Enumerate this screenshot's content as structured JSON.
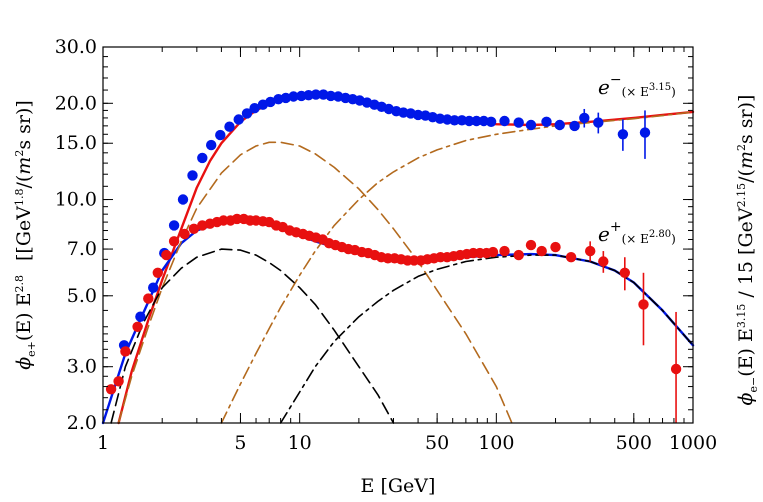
{
  "chart_data": {
    "type": "scatter",
    "xscale": "log",
    "yscale": "log",
    "xlim": [
      1,
      1000
    ],
    "ylim": [
      2,
      30
    ],
    "x_ticks": [
      1,
      5,
      10,
      50,
      100,
      500,
      1000
    ],
    "x_tick_labels": [
      "1",
      "5",
      "10",
      "50",
      "100",
      "500",
      "1000"
    ],
    "y_ticks": [
      2,
      3,
      5,
      7,
      10,
      15,
      20,
      30
    ],
    "y_tick_labels": [
      "2.0",
      "3.0",
      "5.0",
      "7.0",
      "10.0",
      "15.0",
      "20.0",
      "30.0"
    ],
    "xlabel": "E  [GeV]",
    "ylabel_left_a": "[GeV",
    "ylabel_left_sup": "1.8",
    "ylabel_left_b": "/(",
    "ylabel_left_m": "m",
    "ylabel_left_m2": "2",
    "ylabel_left_c": "s sr)]",
    "ylabel_left_phi": "ϕ",
    "ylabel_left_sub": "e+",
    "ylabel_left_d": "(E) E",
    "ylabel_left_sup2": "2.8",
    "ylabel_right_phi": "ϕ",
    "ylabel_right_sub": "e−",
    "ylabel_right_a": "(E) E",
    "ylabel_right_sup": "3.15",
    "ylabel_right_b": " / 15   [GeV",
    "ylabel_right_sup2": "2.15",
    "ylabel_right_c": "/(",
    "ylabel_right_m": "m",
    "ylabel_right_m2": "2",
    "ylabel_right_d": "s sr)]",
    "series_labels": [
      {
        "name": "electrons",
        "main": "e",
        "sup": "−",
        "scale_text": "(× E",
        "scale_exp": "3.15",
        "close": ")"
      },
      {
        "name": "positrons",
        "main": "e",
        "sup": "+",
        "scale_text": "(× E",
        "scale_exp": "2.80",
        "close": ")"
      }
    ],
    "series": [
      {
        "name": "e- data (× E^3.15)",
        "color": "#0018e8",
        "marker": "circle",
        "points": [
          [
            1.28,
            3.5
          ],
          [
            1.55,
            4.3
          ],
          [
            1.8,
            5.3
          ],
          [
            2.05,
            6.8
          ],
          [
            2.3,
            8.3
          ],
          [
            2.55,
            10.0
          ],
          [
            2.85,
            11.9
          ],
          [
            3.2,
            13.5
          ],
          [
            3.55,
            14.8
          ],
          [
            3.95,
            15.9
          ],
          [
            4.4,
            16.9
          ],
          [
            4.9,
            17.8
          ],
          [
            5.4,
            18.6
          ],
          [
            5.9,
            19.3
          ],
          [
            6.5,
            19.8
          ],
          [
            7.1,
            20.2
          ],
          [
            7.8,
            20.6
          ],
          [
            8.5,
            20.8
          ],
          [
            9.3,
            21.0
          ],
          [
            10.2,
            21.1
          ],
          [
            11.1,
            21.2
          ],
          [
            12.1,
            21.3
          ],
          [
            13.2,
            21.3
          ],
          [
            14.4,
            21.1
          ],
          [
            15.7,
            21.0
          ],
          [
            17.1,
            20.8
          ],
          [
            18.6,
            20.6
          ],
          [
            20.2,
            20.4
          ],
          [
            22.0,
            20.1
          ],
          [
            24.0,
            19.8
          ],
          [
            26.1,
            19.5
          ],
          [
            28.4,
            19.2
          ],
          [
            31,
            18.9
          ],
          [
            33.7,
            18.7
          ],
          [
            36.7,
            18.6
          ],
          [
            40,
            18.4
          ],
          [
            43.6,
            18.3
          ],
          [
            47.5,
            18.1
          ],
          [
            51.7,
            17.9
          ],
          [
            56.3,
            17.8
          ],
          [
            61.3,
            17.7
          ],
          [
            66.8,
            17.7
          ],
          [
            72.8,
            17.6
          ],
          [
            79.3,
            17.6
          ],
          [
            86.4,
            17.6
          ],
          [
            94.1,
            17.5
          ],
          [
            110,
            17.6
          ],
          [
            130,
            17.4
          ],
          [
            150,
            17.1
          ],
          [
            180,
            17.5
          ],
          [
            210,
            17.1
          ],
          [
            250,
            17.0
          ],
          [
            280,
            18.0
          ],
          [
            330,
            17.4
          ],
          [
            440,
            16.0
          ],
          [
            570,
            16.2
          ]
        ],
        "errors": [
          [
            280,
            1.2
          ],
          [
            330,
            1.3
          ],
          [
            440,
            1.8
          ],
          [
            570,
            2.8
          ]
        ]
      },
      {
        "name": "e+ data (× E^2.80)",
        "color": "#e81010",
        "marker": "circle",
        "points": [
          [
            1.1,
            2.55
          ],
          [
            1.2,
            2.7
          ],
          [
            1.3,
            3.35
          ],
          [
            1.5,
            4.0
          ],
          [
            1.7,
            4.9
          ],
          [
            1.9,
            5.9
          ],
          [
            2.1,
            6.7
          ],
          [
            2.3,
            7.4
          ],
          [
            2.6,
            7.8
          ],
          [
            2.9,
            8.1
          ],
          [
            3.2,
            8.3
          ],
          [
            3.5,
            8.4
          ],
          [
            3.8,
            8.5
          ],
          [
            4.1,
            8.6
          ],
          [
            4.45,
            8.6
          ],
          [
            4.8,
            8.7
          ],
          [
            5.2,
            8.7
          ],
          [
            5.6,
            8.6
          ],
          [
            6.0,
            8.6
          ],
          [
            6.5,
            8.55
          ],
          [
            7.0,
            8.5
          ],
          [
            7.6,
            8.3
          ],
          [
            8.2,
            8.2
          ],
          [
            8.9,
            8.0
          ],
          [
            9.6,
            7.9
          ],
          [
            10.4,
            7.8
          ],
          [
            11.2,
            7.7
          ],
          [
            12.1,
            7.6
          ],
          [
            13.1,
            7.5
          ],
          [
            14.1,
            7.3
          ],
          [
            15.2,
            7.2
          ],
          [
            16.4,
            7.1
          ],
          [
            17.7,
            7.0
          ],
          [
            19.1,
            6.95
          ],
          [
            20.7,
            6.85
          ],
          [
            22.3,
            6.8
          ],
          [
            24.1,
            6.7
          ],
          [
            26,
            6.6
          ],
          [
            28.1,
            6.55
          ],
          [
            30.4,
            6.55
          ],
          [
            32.8,
            6.5
          ],
          [
            35.4,
            6.45
          ],
          [
            38.2,
            6.45
          ],
          [
            41.3,
            6.45
          ],
          [
            44.6,
            6.5
          ],
          [
            48.2,
            6.55
          ],
          [
            52,
            6.6
          ],
          [
            56.2,
            6.6
          ],
          [
            60.7,
            6.65
          ],
          [
            65.5,
            6.7
          ],
          [
            70.8,
            6.75
          ],
          [
            76.4,
            6.8
          ],
          [
            82.5,
            6.8
          ],
          [
            89.1,
            6.8
          ],
          [
            96.2,
            6.85
          ],
          [
            110,
            6.9
          ],
          [
            130,
            6.7
          ],
          [
            150,
            7.2
          ],
          [
            170,
            6.9
          ],
          [
            200,
            7.1
          ],
          [
            240,
            6.6
          ],
          [
            300,
            6.9
          ],
          [
            350,
            6.4
          ],
          [
            450,
            5.9
          ],
          [
            560,
            4.7
          ],
          [
            820,
            2.95
          ]
        ],
        "errors": [
          [
            300,
            0.5
          ],
          [
            350,
            0.5
          ],
          [
            450,
            0.7
          ],
          [
            560,
            1.2
          ],
          [
            820,
            1.5
          ]
        ]
      }
    ],
    "fits": [
      {
        "name": "e- total fit",
        "color": "#e81010",
        "style": "solid",
        "points": [
          [
            1.2,
            2.0
          ],
          [
            1.4,
            2.9
          ],
          [
            1.7,
            4.2
          ],
          [
            2.0,
            5.6
          ],
          [
            2.5,
            8.1
          ],
          [
            3,
            10.9
          ],
          [
            3.5,
            13.2
          ],
          [
            4,
            15.0
          ],
          [
            5,
            17.5
          ],
          [
            6,
            19.0
          ],
          [
            7,
            19.9
          ],
          [
            8,
            20.5
          ],
          [
            10,
            21.0
          ],
          [
            12,
            21.1
          ],
          [
            15,
            20.8
          ],
          [
            20,
            20.1
          ],
          [
            25,
            19.5
          ],
          [
            30,
            19.0
          ],
          [
            40,
            18.3
          ],
          [
            50,
            17.9
          ],
          [
            70,
            17.5
          ],
          [
            100,
            17.2
          ],
          [
            150,
            17.1
          ],
          [
            200,
            17.2
          ],
          [
            300,
            17.5
          ],
          [
            500,
            18.0
          ],
          [
            700,
            18.4
          ],
          [
            1000,
            18.8
          ]
        ]
      },
      {
        "name": "e+ total fit",
        "color": "#0018e8",
        "style": "solid",
        "points": [
          [
            1,
            2.0
          ],
          [
            1.3,
            3.3
          ],
          [
            1.6,
            4.4
          ],
          [
            2,
            6.0
          ],
          [
            2.5,
            7.3
          ],
          [
            3,
            8.0
          ],
          [
            4,
            8.5
          ],
          [
            5,
            8.6
          ],
          [
            6,
            8.5
          ],
          [
            7,
            8.3
          ],
          [
            8,
            8.1
          ],
          [
            10,
            7.7
          ],
          [
            12,
            7.4
          ],
          [
            15,
            7.1
          ],
          [
            20,
            6.8
          ],
          [
            30,
            6.5
          ],
          [
            40,
            6.45
          ],
          [
            50,
            6.5
          ],
          [
            70,
            6.6
          ],
          [
            100,
            6.7
          ],
          [
            150,
            6.75
          ],
          [
            200,
            6.7
          ],
          [
            300,
            6.4
          ],
          [
            400,
            6.0
          ],
          [
            500,
            5.5
          ],
          [
            700,
            4.5
          ],
          [
            1000,
            3.5
          ]
        ]
      },
      {
        "name": "e- primary component",
        "color": "#b36a1e",
        "style": "dashed",
        "points": [
          [
            1.2,
            2.0
          ],
          [
            1.4,
            2.8
          ],
          [
            1.7,
            4.0
          ],
          [
            2,
            5.3
          ],
          [
            2.5,
            7.4
          ],
          [
            3,
            9.4
          ],
          [
            4,
            12.1
          ],
          [
            5,
            13.8
          ],
          [
            6,
            14.7
          ],
          [
            7,
            15.1
          ],
          [
            8,
            15.1
          ],
          [
            10,
            14.7
          ],
          [
            12,
            13.9
          ],
          [
            15,
            12.6
          ],
          [
            20,
            10.8
          ],
          [
            25,
            9.3
          ],
          [
            30,
            8.1
          ],
          [
            40,
            6.4
          ],
          [
            50,
            5.2
          ],
          [
            70,
            3.8
          ],
          [
            100,
            2.6
          ],
          [
            120,
            2.0
          ]
        ]
      },
      {
        "name": "e- secondary component",
        "color": "#b36a1e",
        "style": "dashdot",
        "points": [
          [
            4,
            2.0
          ],
          [
            5,
            2.65
          ],
          [
            6,
            3.3
          ],
          [
            7,
            3.95
          ],
          [
            8,
            4.6
          ],
          [
            10,
            5.8
          ],
          [
            12,
            6.9
          ],
          [
            15,
            8.3
          ],
          [
            20,
            10.0
          ],
          [
            25,
            11.3
          ],
          [
            30,
            12.2
          ],
          [
            40,
            13.5
          ],
          [
            50,
            14.3
          ],
          [
            70,
            15.3
          ],
          [
            100,
            16.0
          ],
          [
            150,
            16.6
          ],
          [
            200,
            17.0
          ],
          [
            300,
            17.4
          ],
          [
            500,
            17.9
          ],
          [
            700,
            18.3
          ],
          [
            1000,
            18.8
          ]
        ]
      },
      {
        "name": "e+ primary component",
        "color": "#000000",
        "style": "dashed",
        "points": [
          [
            1.1,
            2.0
          ],
          [
            1.3,
            3.0
          ],
          [
            1.6,
            4.1
          ],
          [
            2,
            5.3
          ],
          [
            2.5,
            6.1
          ],
          [
            3,
            6.6
          ],
          [
            4,
            7.0
          ],
          [
            5,
            6.95
          ],
          [
            6,
            6.7
          ],
          [
            7,
            6.35
          ],
          [
            8,
            6.0
          ],
          [
            10,
            5.3
          ],
          [
            12,
            4.7
          ],
          [
            15,
            3.9
          ],
          [
            20,
            3.0
          ],
          [
            25,
            2.45
          ],
          [
            30,
            2.0
          ]
        ]
      },
      {
        "name": "e+ secondary component",
        "color": "#000000",
        "style": "dashdot",
        "points": [
          [
            8,
            2.0
          ],
          [
            10,
            2.5
          ],
          [
            12,
            3.0
          ],
          [
            15,
            3.6
          ],
          [
            20,
            4.3
          ],
          [
            25,
            4.8
          ],
          [
            30,
            5.2
          ],
          [
            40,
            5.75
          ],
          [
            50,
            6.05
          ],
          [
            70,
            6.4
          ],
          [
            100,
            6.6
          ],
          [
            150,
            6.7
          ],
          [
            200,
            6.7
          ],
          [
            300,
            6.4
          ],
          [
            400,
            6.0
          ],
          [
            500,
            5.5
          ],
          [
            700,
            4.5
          ],
          [
            1000,
            3.5
          ]
        ]
      }
    ]
  }
}
